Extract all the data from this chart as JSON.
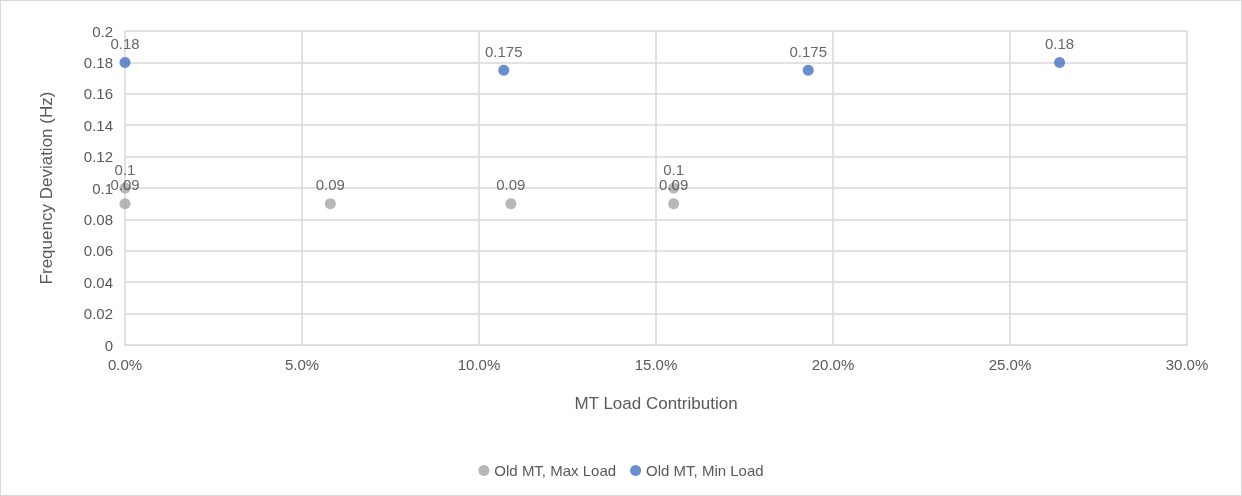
{
  "chart_data": {
    "type": "scatter",
    "xlabel": "MT Load Contribution",
    "ylabel": "Frequency Deviation (Hz)",
    "xlim": [
      0,
      30
    ],
    "xticks": [
      {
        "value": 0,
        "label": "0.0%"
      },
      {
        "value": 5,
        "label": "5.0%"
      },
      {
        "value": 10,
        "label": "10.0%"
      },
      {
        "value": 15,
        "label": "15.0%"
      },
      {
        "value": 20,
        "label": "20.0%"
      },
      {
        "value": 25,
        "label": "25.0%"
      },
      {
        "value": 30,
        "label": "30.0%"
      }
    ],
    "ylim": [
      0,
      0.2
    ],
    "yticks": [
      0,
      0.02,
      0.04,
      0.06,
      0.08,
      0.1,
      0.12,
      0.14,
      0.16,
      0.18,
      0.2
    ],
    "series": [
      {
        "name": "Old MT, Max Load",
        "color": "#a5a5a5",
        "x": [
          0,
          0,
          5.8,
          10.9,
          15.5,
          15.5
        ],
        "values": [
          0.1,
          0.09,
          0.09,
          0.09,
          0.1,
          0.09
        ]
      },
      {
        "name": "Old MT, Min Load",
        "color": "#4472c4",
        "x": [
          0,
          10.7,
          19.3,
          26.4
        ],
        "values": [
          0.18,
          0.175,
          0.175,
          0.18
        ]
      }
    ],
    "data_labels": true,
    "grid": true,
    "legend": "bottom",
    "marker": "circle"
  }
}
